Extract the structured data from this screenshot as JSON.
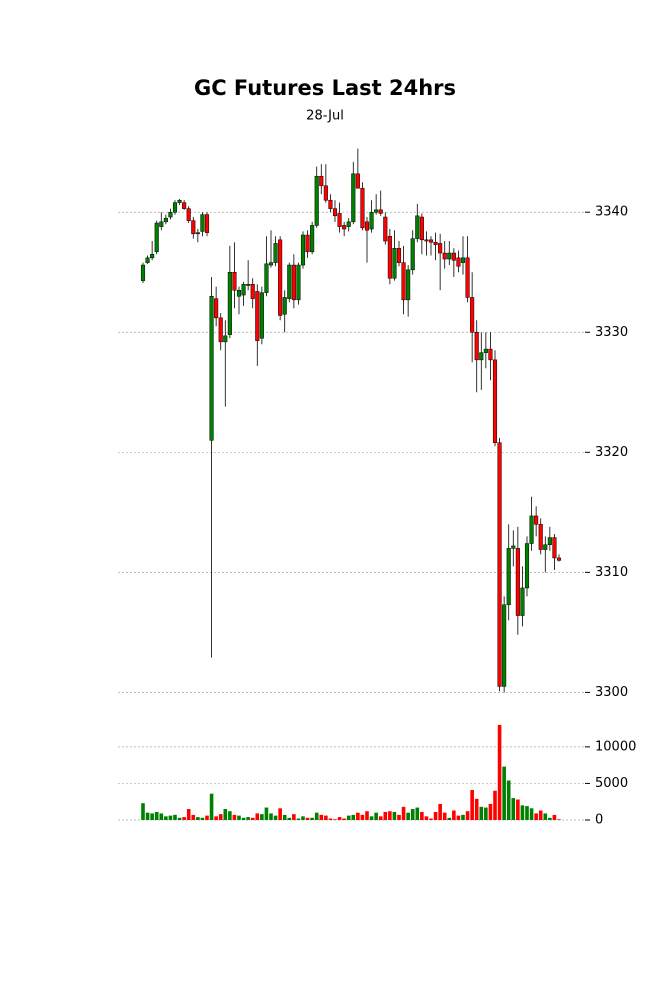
{
  "chart_data": {
    "type": "candlestick",
    "title": "GC Futures Last 24hrs",
    "subtitle": "28-Jul",
    "up_color": "#008000",
    "down_color": "#ff0000",
    "grid": true,
    "ylim": [
      3299.7,
      3345.6
    ],
    "yticks": [
      3300,
      3310,
      3320,
      3330,
      3340
    ],
    "volume_ylim": [
      0,
      13400
    ],
    "volume_yticks": [
      0,
      5000,
      10000
    ],
    "open": [
      3334.3,
      3335.8,
      3336.2,
      3336.7,
      3338.8,
      3339.2,
      3339.6,
      3340.0,
      3340.8,
      3340.8,
      3340.3,
      3339.3,
      3338.2,
      3338.4,
      3339.8,
      3321.0,
      3332.8,
      3331.2,
      3329.2,
      3329.8,
      3335.0,
      3333.0,
      3333.1,
      3333.9,
      3334.0,
      3333.4,
      3329.5,
      3333.3,
      3335.6,
      3335.8,
      3337.7,
      3331.5,
      3332.8,
      3335.6,
      3332.7,
      3335.6,
      3338.1,
      3336.7,
      3338.9,
      3343.0,
      3342.2,
      3341.0,
      3340.3,
      3339.9,
      3338.9,
      3338.8,
      3339.2,
      3343.2,
      3342.0,
      3339.2,
      3338.6,
      3340.0,
      3340.2,
      3339.6,
      3338.0,
      3334.5,
      3337.0,
      3335.8,
      3332.7,
      3335.2,
      3337.8,
      3339.6,
      3337.7,
      3337.7,
      3337.5,
      3337.4,
      3336.6,
      3336.1,
      3336.6,
      3336.2,
      3335.8,
      3336.2,
      3332.9,
      3330.0,
      3327.7,
      3328.3,
      3328.6,
      3327.7,
      3320.8,
      3300.5,
      3307.3,
      3312.0,
      3312.0,
      3306.4,
      3308.7,
      3312.4,
      3314.7,
      3314.0,
      3311.9,
      3312.3,
      3312.9,
      3311.2
    ],
    "high": [
      3335.8,
      3336.4,
      3337.6,
      3339.3,
      3340.0,
      3339.8,
      3340.3,
      3341.0,
      3341.1,
      3341.0,
      3340.5,
      3339.6,
      3338.6,
      3340.0,
      3340.0,
      3334.6,
      3333.8,
      3331.6,
      3331.0,
      3337.2,
      3337.5,
      3333.8,
      3334.2,
      3336.0,
      3334.5,
      3334.0,
      3333.8,
      3338.0,
      3338.5,
      3338.0,
      3338.0,
      3333.5,
      3335.8,
      3336.5,
      3335.8,
      3338.4,
      3338.5,
      3339.2,
      3343.8,
      3344.0,
      3344.0,
      3341.5,
      3341.0,
      3340.8,
      3339.2,
      3339.5,
      3344.2,
      3345.3,
      3342.5,
      3339.6,
      3341.0,
      3341.5,
      3341.8,
      3340.0,
      3338.6,
      3338.5,
      3337.6,
      3337.2,
      3335.6,
      3338.5,
      3340.7,
      3339.9,
      3338.4,
      3338.0,
      3338.3,
      3338.2,
      3337.6,
      3337.6,
      3337.0,
      3336.8,
      3338.0,
      3338.0,
      3335.0,
      3331.0,
      3330.0,
      3330.0,
      3330.0,
      3328.5,
      3321.2,
      3308.0,
      3314.0,
      3313.5,
      3313.8,
      3310.5,
      3313.0,
      3316.3,
      3315.5,
      3314.5,
      3313.0,
      3313.8,
      3313.2,
      3311.5
    ],
    "low": [
      3334.1,
      3335.7,
      3336.0,
      3336.5,
      3338.5,
      3339.0,
      3339.4,
      3339.8,
      3340.6,
      3340.2,
      3339.1,
      3337.8,
      3337.5,
      3338.0,
      3338.0,
      3302.9,
      3330.5,
      3328.5,
      3323.8,
      3329.5,
      3332.0,
      3331.5,
      3332.2,
      3333.5,
      3332.0,
      3327.2,
      3329.0,
      3333.0,
      3335.4,
      3335.5,
      3331.0,
      3330.0,
      3332.5,
      3332.0,
      3332.3,
      3335.3,
      3336.2,
      3336.5,
      3338.7,
      3341.5,
      3340.8,
      3340.0,
      3339.2,
      3338.3,
      3338.0,
      3338.4,
      3339.0,
      3342.0,
      3338.5,
      3335.8,
      3338.3,
      3339.8,
      3339.7,
      3337.3,
      3334.0,
      3334.3,
      3335.5,
      3331.5,
      3331.3,
      3334.8,
      3337.5,
      3336.5,
      3336.4,
      3336.4,
      3336.0,
      3333.5,
      3335.3,
      3335.6,
      3334.6,
      3335.0,
      3334.8,
      3332.5,
      3327.5,
      3325.0,
      3325.2,
      3327.0,
      3326.0,
      3320.5,
      3300.1,
      3300.0,
      3306.0,
      3310.5,
      3304.8,
      3305.5,
      3308.0,
      3311.8,
      3313.0,
      3311.5,
      3310.0,
      3311.8,
      3310.2,
      3310.9
    ],
    "close": [
      3335.6,
      3336.2,
      3336.5,
      3339.1,
      3339.2,
      3339.5,
      3340.0,
      3340.8,
      3341.0,
      3340.3,
      3339.3,
      3338.2,
      3338.3,
      3339.8,
      3338.3,
      3333.0,
      3331.2,
      3329.2,
      3329.7,
      3335.0,
      3333.5,
      3333.5,
      3334.0,
      3334.0,
      3332.8,
      3329.3,
      3333.3,
      3335.7,
      3335.8,
      3337.4,
      3331.4,
      3332.9,
      3335.6,
      3332.7,
      3335.6,
      3338.1,
      3336.7,
      3338.9,
      3343.0,
      3342.2,
      3341.0,
      3340.3,
      3339.7,
      3338.8,
      3338.6,
      3339.2,
      3343.2,
      3342.0,
      3338.7,
      3338.5,
      3340.0,
      3340.2,
      3339.9,
      3337.6,
      3334.5,
      3337.0,
      3335.8,
      3332.7,
      3335.2,
      3337.8,
      3339.7,
      3337.7,
      3337.6,
      3337.5,
      3337.3,
      3336.6,
      3336.1,
      3336.6,
      3336.0,
      3335.5,
      3336.2,
      3332.9,
      3330.0,
      3327.7,
      3328.3,
      3328.6,
      3327.7,
      3320.8,
      3300.5,
      3307.3,
      3312.0,
      3312.2,
      3306.4,
      3308.7,
      3312.4,
      3314.7,
      3314.0,
      3311.9,
      3312.3,
      3312.9,
      3311.2,
      3311.0
    ],
    "volume": [
      2300,
      1000,
      900,
      1100,
      900,
      500,
      600,
      700,
      300,
      400,
      1500,
      700,
      400,
      300,
      600,
      3600,
      500,
      800,
      1500,
      1200,
      700,
      600,
      300,
      400,
      300,
      900,
      800,
      1700,
      900,
      600,
      1600,
      700,
      300,
      800,
      200,
      500,
      300,
      300,
      1000,
      700,
      600,
      200,
      100,
      400,
      200,
      600,
      700,
      1000,
      700,
      1200,
      500,
      1000,
      500,
      1100,
      1200,
      1100,
      700,
      1800,
      1000,
      1500,
      1700,
      1100,
      500,
      200,
      1100,
      2200,
      1000,
      300,
      1300,
      600,
      700,
      1200,
      4100,
      2900,
      1800,
      1700,
      2200,
      4000,
      13000,
      7300,
      5400,
      3000,
      2800,
      2000,
      1900,
      1600,
      900,
      1300,
      900,
      300,
      700,
      100
    ]
  }
}
